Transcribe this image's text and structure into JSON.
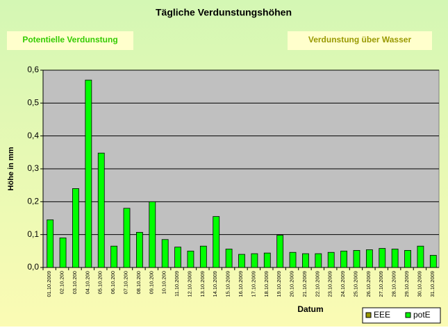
{
  "chart_data": {
    "type": "bar",
    "title": "Tägliche Verdunstungshöhen",
    "annotations": [
      "Potentielle Verdunstung",
      "Verdunstung über Wasser"
    ],
    "x_label": "Datum",
    "y_label": "Höhe in mm",
    "categories": [
      "01.10.2009",
      "02.10.200",
      "03.10.200",
      "04.10.200",
      "05.10.200",
      "06.10.200",
      "07.10.200",
      "08.10.200",
      "09.10.200",
      "10.10.200",
      "11.10.2009",
      "12.10.2009",
      "13.10.2009",
      "14.10.2009",
      "15.10.2009",
      "16.10.2009",
      "17.10.2009",
      "18.10.2009",
      "19.10.2009",
      "20.10.2009",
      "21.10.2009",
      "22.10.2009",
      "23.10.2009",
      "24.10.2009",
      "25.10.2009",
      "26.10.2009",
      "27.10.2009",
      "28.10.2009",
      "29.10.2009",
      "30.10.2009",
      "31.10.2009"
    ],
    "series": [
      {
        "name": "EEE",
        "color": "#999900",
        "values": [
          null,
          null,
          null,
          null,
          null,
          null,
          null,
          null,
          null,
          null,
          null,
          null,
          null,
          null,
          null,
          null,
          null,
          null,
          null,
          null,
          null,
          null,
          null,
          null,
          null,
          null,
          null,
          null,
          null,
          null,
          null
        ]
      },
      {
        "name": "potE",
        "color": "#00ff00",
        "values": [
          0.145,
          0.09,
          0.24,
          0.57,
          0.348,
          0.065,
          0.18,
          0.107,
          0.2,
          0.085,
          0.062,
          0.05,
          0.065,
          0.155,
          0.056,
          0.04,
          0.042,
          0.044,
          0.098,
          0.046,
          0.042,
          0.042,
          0.046,
          0.05,
          0.052,
          0.054,
          0.058,
          0.056,
          0.052,
          0.065,
          0.037
        ]
      }
    ],
    "ylim": [
      0,
      0.6
    ],
    "yticks": [
      {
        "value": 0,
        "label": "0,0"
      },
      {
        "value": 0.1,
        "label": "0,1"
      },
      {
        "value": 0.2,
        "label": "0,2"
      },
      {
        "value": 0.3,
        "label": "0,3"
      },
      {
        "value": 0.4,
        "label": "0,4"
      },
      {
        "value": 0.5,
        "label": "0,5"
      },
      {
        "value": 0.6,
        "label": "0,6"
      }
    ],
    "grid": true,
    "legend": "bottom-right"
  }
}
